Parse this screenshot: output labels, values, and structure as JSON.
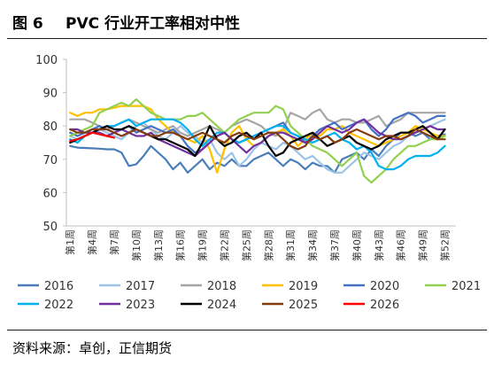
{
  "figure": {
    "number": "图 6",
    "title": "PVC 行业开工率相对中性",
    "source": "资料来源：卓创，正信期货"
  },
  "chart_data": {
    "type": "line",
    "ylim": [
      50,
      100
    ],
    "yticks": [
      50,
      60,
      70,
      80,
      90,
      100
    ],
    "x_count": 53,
    "x_tick_indices": [
      1,
      4,
      7,
      10,
      13,
      16,
      19,
      22,
      25,
      28,
      31,
      34,
      37,
      40,
      43,
      46,
      49,
      52
    ],
    "x_tick_labels": [
      "第1周",
      "第4周",
      "第7周",
      "第10周",
      "第13周",
      "第16周",
      "第19周",
      "第22周",
      "第25周",
      "第28周",
      "第31周",
      "第34周",
      "第37周",
      "第40周",
      "第43周",
      "第46周",
      "第49周",
      "第52周"
    ],
    "legend_position": "bottom",
    "grid": false,
    "series": [
      {
        "name": "2016",
        "color": "#4a7ebb",
        "start": 1,
        "values": [
          74,
          73.5,
          73.4,
          73.3,
          73.2,
          73,
          73,
          72,
          68,
          68.5,
          71,
          74,
          72,
          70,
          67,
          69,
          66,
          68,
          70,
          67,
          69,
          68,
          70,
          68,
          68,
          70,
          71,
          72,
          70,
          68,
          70,
          69,
          67,
          69,
          68,
          68,
          66,
          70,
          71,
          72,
          70,
          73,
          71,
          74,
          76,
          78,
          78,
          77,
          78,
          76,
          77,
          77.5
        ]
      },
      {
        "name": "2017",
        "color": "#9dc3e6",
        "start": 1,
        "values": [
          77,
          76,
          77,
          78,
          79,
          78,
          77,
          76,
          78,
          80,
          81,
          79,
          77,
          76,
          78,
          80,
          78,
          77,
          75,
          76,
          72,
          70,
          72,
          68,
          70,
          73,
          75,
          74,
          73,
          75,
          74,
          72,
          70,
          71,
          69,
          67,
          66,
          66,
          68,
          70,
          72,
          71,
          70,
          72,
          74,
          75,
          77,
          78,
          79,
          80,
          81,
          82
        ]
      },
      {
        "name": "2018",
        "color": "#a6a6a6",
        "start": 1,
        "values": [
          82,
          82,
          82,
          81,
          80,
          79,
          80,
          81,
          82,
          81,
          80,
          79,
          78,
          79,
          80,
          78,
          77,
          78,
          79,
          80,
          79,
          78,
          80,
          81,
          82,
          81,
          80,
          78,
          77,
          79,
          84,
          83,
          82,
          84,
          85,
          82,
          81,
          82,
          82,
          81,
          81,
          82,
          83,
          80,
          81,
          82,
          84,
          84,
          84,
          84,
          84,
          84
        ]
      },
      {
        "name": "2019",
        "color": "#ffc000",
        "start": 1,
        "values": [
          84,
          83,
          84,
          84,
          85,
          85,
          85.5,
          86,
          86,
          86,
          86,
          85,
          82,
          80,
          78,
          77,
          76,
          75,
          77,
          73,
          66,
          73,
          78,
          80,
          76,
          74,
          75,
          77,
          78,
          79,
          77,
          74,
          76,
          78,
          77,
          79,
          79,
          80,
          78,
          77,
          76,
          75,
          74,
          75,
          76,
          77,
          78,
          80,
          79,
          78,
          77,
          77
        ]
      },
      {
        "name": "2020",
        "color": "#4472c4",
        "start": 1,
        "values": [
          78,
          77,
          78,
          79,
          80,
          79,
          78,
          79,
          80,
          78,
          79,
          80,
          79,
          78,
          79,
          77,
          74,
          72,
          73,
          75,
          77,
          78,
          76,
          75,
          76,
          77,
          78,
          79,
          80,
          81,
          78,
          77,
          75,
          77,
          79,
          80,
          81,
          79,
          80,
          81,
          82,
          79,
          77,
          79,
          82,
          83,
          84,
          83,
          81,
          82,
          83,
          83
        ]
      },
      {
        "name": "2021",
        "color": "#92d050",
        "start": 1,
        "values": [
          77,
          78,
          79,
          80,
          84,
          85,
          86,
          87,
          86,
          88,
          86,
          84,
          83,
          82,
          82,
          82,
          83,
          83,
          84,
          82,
          80,
          78,
          80,
          82,
          83,
          84,
          84,
          84,
          86,
          85,
          80,
          78,
          76,
          74,
          73,
          72,
          70,
          68,
          70,
          72,
          65,
          63,
          65,
          67,
          70,
          72,
          74,
          74,
          75,
          76,
          76,
          77
        ]
      },
      {
        "name": "2022",
        "color": "#00b0f0",
        "start": 1,
        "values": [
          76,
          75,
          77,
          78,
          79,
          80,
          80,
          81,
          82,
          80,
          81,
          82,
          82,
          82,
          82,
          81,
          79,
          76,
          74,
          76,
          78,
          78,
          76,
          75,
          76,
          77,
          78,
          79,
          80,
          80,
          78,
          77,
          76,
          75,
          76,
          77,
          78,
          76,
          75,
          73,
          74,
          72,
          68,
          67,
          67,
          68,
          70,
          71,
          71,
          71,
          72,
          74
        ]
      },
      {
        "name": "2023",
        "color": "#7030a0",
        "start": 1,
        "values": [
          79,
          79,
          78,
          78,
          78,
          77,
          78,
          79,
          78,
          77,
          77,
          78,
          76,
          75,
          74,
          73,
          72,
          71,
          73,
          75,
          77,
          78,
          76,
          74,
          72,
          74,
          75,
          77,
          78,
          78,
          77,
          76,
          75,
          76,
          78,
          80,
          79,
          78,
          79,
          81,
          82,
          80,
          78,
          77,
          76,
          76,
          77,
          78,
          79,
          80,
          79,
          79
        ]
      },
      {
        "name": "2024",
        "color": "#000000",
        "start": 1,
        "values": [
          75,
          76,
          77,
          78,
          79,
          80,
          79,
          79,
          80,
          79,
          78,
          77,
          76,
          76,
          75,
          74,
          73,
          71,
          75,
          80,
          76,
          74,
          75,
          77,
          78,
          76,
          78,
          74,
          71,
          72,
          75,
          76,
          77,
          78,
          76,
          74,
          75,
          76,
          77,
          75,
          74,
          73,
          74,
          76,
          77,
          78,
          78,
          79,
          80,
          78,
          76,
          79
        ]
      },
      {
        "name": "2025",
        "color": "#843c0c",
        "start": 1,
        "values": [
          79,
          78,
          78,
          79,
          79,
          79,
          78,
          77,
          78,
          79,
          78,
          77,
          77,
          78,
          78,
          77,
          76,
          77,
          78,
          77,
          76,
          75,
          77,
          78,
          77,
          76,
          77,
          78,
          78,
          76,
          74,
          73,
          74,
          77,
          76,
          77,
          75,
          76,
          78,
          79,
          78,
          77,
          76,
          77,
          77,
          76,
          77,
          79,
          78,
          77,
          76,
          76
        ]
      },
      {
        "name": "2026",
        "color": "#ff0000",
        "start": 1,
        "values": [
          75.5,
          76,
          77,
          78,
          77.5,
          77,
          76.5
        ]
      }
    ]
  }
}
